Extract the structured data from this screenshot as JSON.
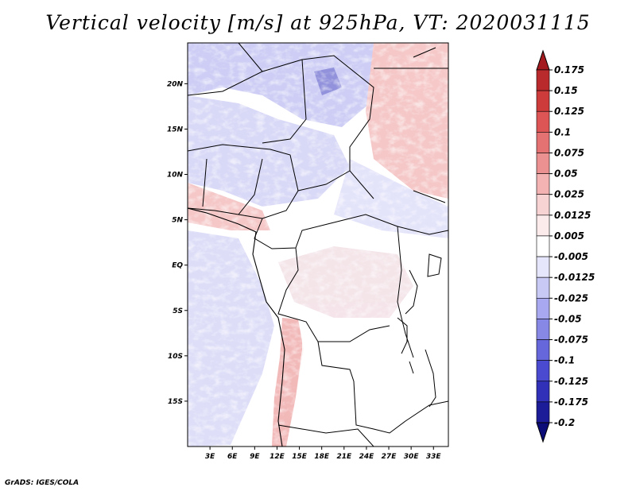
{
  "title": "Vertical velocity [m/s] at 925hPa, VT: 2020031115",
  "credit": "GrADS: IGES/COLA",
  "map": {
    "lon_range": [
      0,
      35
    ],
    "lat_range": [
      -20,
      24.5
    ],
    "lon_labels": [
      "3E",
      "6E",
      "9E",
      "12E",
      "15E",
      "18E",
      "21E",
      "24E",
      "27E",
      "30E",
      "33E"
    ],
    "lat_labels": [
      "20N",
      "15N",
      "10N",
      "5N",
      "EQ",
      "5S",
      "10S",
      "15S"
    ]
  },
  "colorbar": {
    "labels": [
      "0.175",
      "0.15",
      "0.125",
      "0.1",
      "0.075",
      "0.05",
      "0.025",
      "0.0125",
      "0.005",
      "-0.005",
      "-0.0125",
      "-0.025",
      "-0.05",
      "-0.075",
      "-0.1",
      "-0.125",
      "-0.175",
      "-0.2"
    ],
    "colors": [
      "#a31a1f",
      "#b92a2d",
      "#cd3b3b",
      "#dd5555",
      "#e47272",
      "#ec9191",
      "#f3b3b3",
      "#f8d3d3",
      "#fcebeb",
      "#ffffff",
      "#e5e5fb",
      "#c9c9f6",
      "#a8a8f0",
      "#8787e6",
      "#6767dc",
      "#4a4ad0",
      "#3030b8",
      "#1c1c98",
      "#0c0c78"
    ]
  }
}
